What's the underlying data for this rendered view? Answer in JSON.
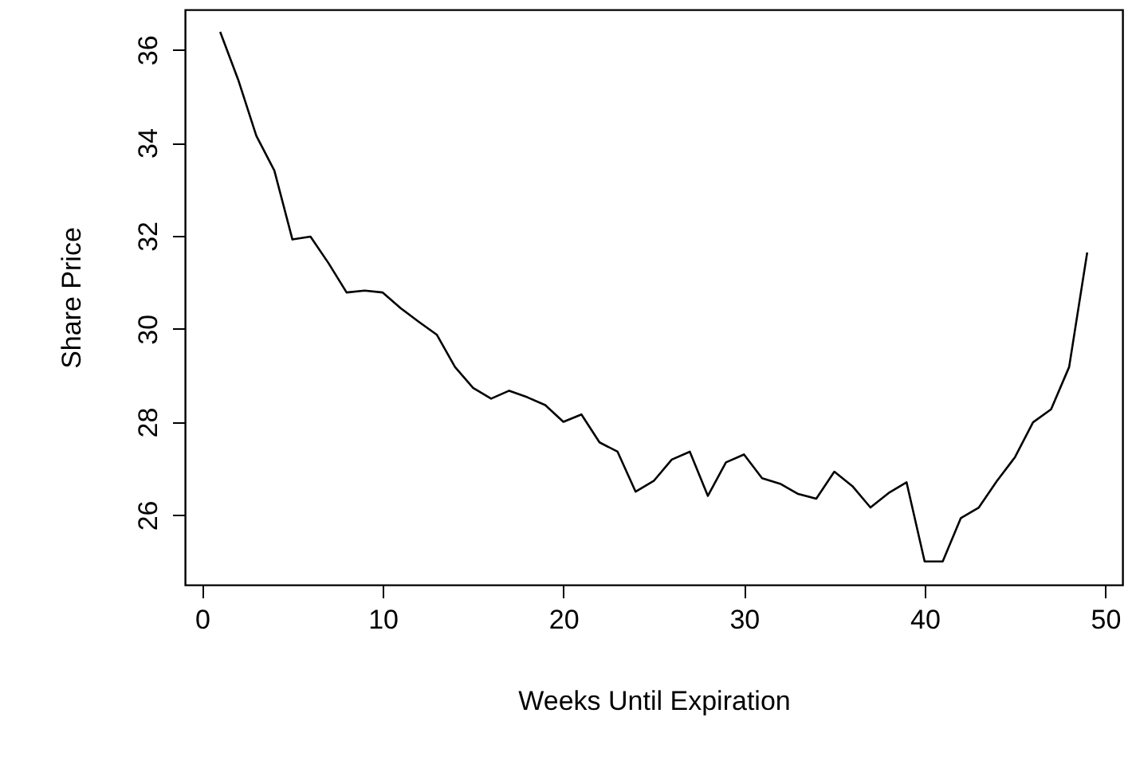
{
  "chart_data": {
    "type": "line",
    "xlabel": "Weeks Until Expiration",
    "ylabel": "Share Price",
    "x": [
      1,
      2,
      3,
      4,
      5,
      6,
      7,
      8,
      9,
      10,
      11,
      12,
      13,
      14,
      15,
      16,
      17,
      18,
      19,
      20,
      21,
      22,
      23,
      24,
      25,
      26,
      27,
      28,
      29,
      30,
      31,
      32,
      33,
      34,
      35,
      36,
      37,
      38,
      39,
      40,
      41,
      42,
      43,
      44,
      45,
      46,
      47,
      48,
      49
    ],
    "series": [
      {
        "color": "#000000",
        "values": [
          36.38,
          35.35,
          34.15,
          33.4,
          31.92,
          31.98,
          31.41,
          30.78,
          30.82,
          30.78,
          30.44,
          30.15,
          29.87,
          29.18,
          28.73,
          28.5,
          28.67,
          28.53,
          28.36,
          28.0,
          28.16,
          27.56,
          27.36,
          26.5,
          26.73,
          27.19,
          27.36,
          26.41,
          27.13,
          27.3,
          26.79,
          26.67,
          26.45,
          26.35,
          26.93,
          26.62,
          26.16,
          26.47,
          26.7,
          25.0,
          25.0,
          25.93,
          26.16,
          26.73,
          27.24,
          27.99,
          28.27,
          29.18,
          31.64
        ]
      }
    ],
    "xlim": [
      -0.95,
      50.95
    ],
    "xticks": [
      0,
      10,
      20,
      30,
      40,
      50
    ],
    "ylim": [
      24.5,
      36.86
    ],
    "yticks": [
      26,
      28,
      30,
      32,
      34,
      36
    ],
    "grid": false,
    "marker": "none",
    "line_style": "solid"
  }
}
